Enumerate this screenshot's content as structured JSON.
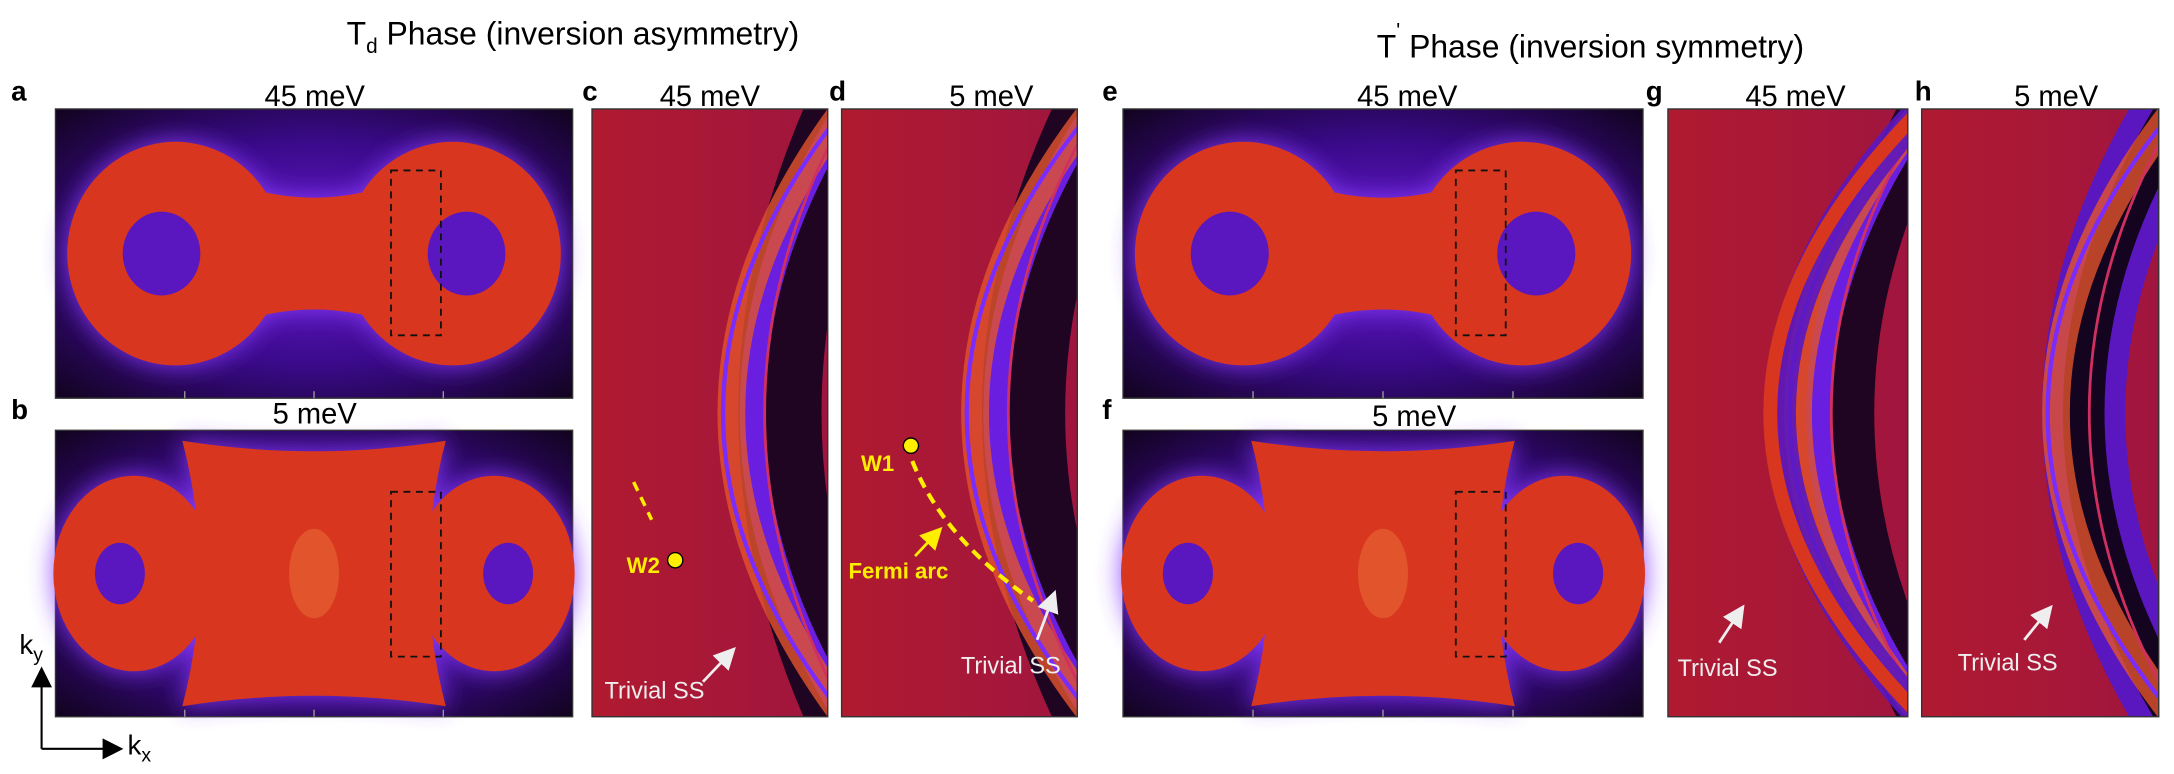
{
  "headers": [
    {
      "main": "T",
      "sub": "d",
      "rest": " Phase (inversion asymmetry)"
    },
    {
      "main": "T",
      "sup": "'",
      "rest": " Phase (inversion symmetry)"
    }
  ],
  "panels": [
    {
      "label": "a",
      "title": "45 meV"
    },
    {
      "label": "b",
      "title": "5 meV"
    },
    {
      "label": "c",
      "title": "45 meV"
    },
    {
      "label": "d",
      "title": "5 meV"
    },
    {
      "label": "e",
      "title": "45 meV"
    },
    {
      "label": "f",
      "title": "5 meV"
    },
    {
      "label": "g",
      "title": "45 meV"
    },
    {
      "label": "h",
      "title": "5 meV"
    }
  ],
  "annotations": {
    "w2": "W2",
    "w1": "W1",
    "fermi_arc": "Fermi arc",
    "trivial_ss": [
      "Trivial SS",
      "Trivial SS",
      "Trivial SS",
      "Trivial SS"
    ]
  },
  "axes": {
    "ky": {
      "main": "k",
      "sub": "y"
    },
    "kx": {
      "main": "k",
      "sub": "x"
    }
  }
}
